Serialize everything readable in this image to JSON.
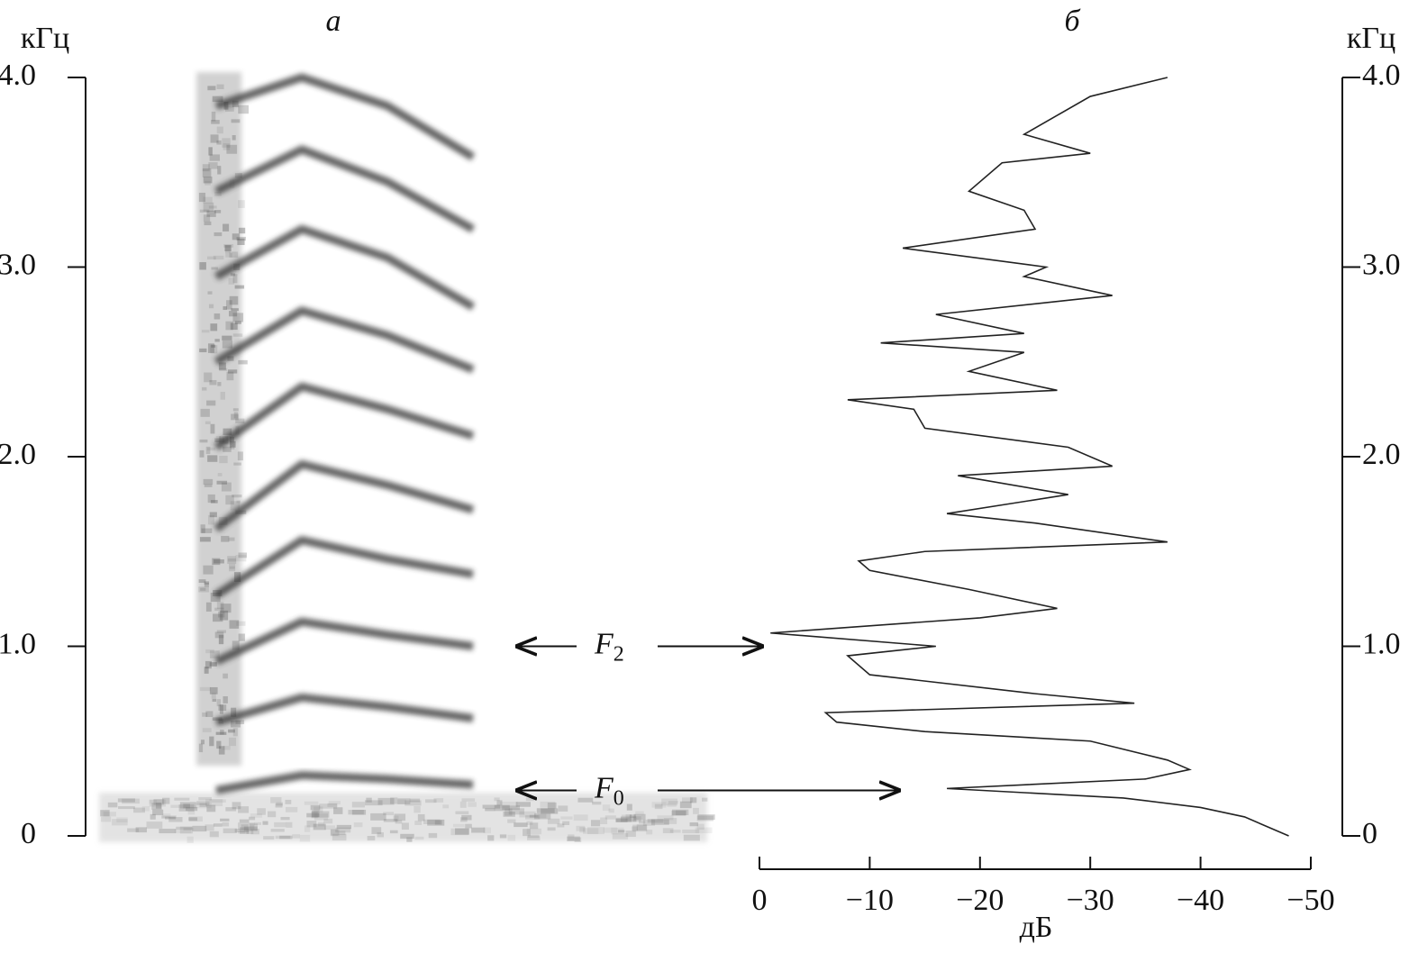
{
  "charts": [
    {
      "type": "spectrogram",
      "title": "а",
      "y_label": "кГц",
      "categories": [
        null,
        null,
        null,
        null
      ],
      "ylim": [
        0,
        4
      ],
      "yticks": [
        0,
        {
          "value": 1,
          "label": "1.0"
        },
        {
          "value": 2,
          "label": "2.0"
        },
        {
          "value": 3,
          "label": "3.0"
        },
        {
          "value": 4,
          "label": "4.0"
        }
      ],
      "color": "#333333",
      "series": [
        {
          "values": [
            0.24,
            0.32,
            0.3,
            0.27
          ]
        },
        {
          "values": [
            0.6,
            0.73,
            0.68,
            0.62
          ]
        },
        {
          "values": [
            0.92,
            1.13,
            1.06,
            1.0
          ]
        },
        {
          "values": [
            1.27,
            1.56,
            1.46,
            1.38
          ]
        },
        {
          "values": [
            1.62,
            1.96,
            1.85,
            1.72
          ]
        },
        {
          "values": [
            2.05,
            2.37,
            2.25,
            2.11
          ]
        },
        {
          "values": [
            2.5,
            2.77,
            2.64,
            2.46
          ]
        },
        {
          "values": [
            2.95,
            3.2,
            3.05,
            2.79
          ]
        },
        {
          "values": [
            3.4,
            3.62,
            3.45,
            3.2
          ]
        },
        {
          "values": [
            3.85,
            4.0,
            3.85,
            3.58
          ]
        }
      ],
      "annotations": [
        {
          "text": "F",
          "subscript": "2",
          "value": 1.0
        },
        {
          "text": "F",
          "subscript": "0",
          "value": 0.24
        }
      ]
    },
    {
      "type": "line",
      "title": "б",
      "y_label": "кГц",
      "x_label": "дБ",
      "xlim": [
        0,
        -50
      ],
      "xticks": [
        0,
        {
          "value": -10,
          "label": "−10"
        },
        {
          "value": -20,
          "label": "−20"
        },
        {
          "value": -30,
          "label": "−30"
        },
        {
          "value": -40,
          "label": "−40"
        },
        {
          "value": -50,
          "label": "−50"
        }
      ],
      "ylim": [
        0,
        4
      ],
      "yticks": [
        0,
        {
          "value": 1,
          "label": "1.0"
        },
        {
          "value": 2,
          "label": "2.0"
        },
        {
          "value": 3,
          "label": "3.0"
        },
        {
          "value": 4,
          "label": "4.0"
        }
      ],
      "color": "#222222",
      "y": [
        0,
        0.05,
        0.1,
        0.15,
        0.2,
        0.25,
        0.3,
        0.35,
        0.4,
        0.5,
        0.55,
        0.6,
        0.65,
        0.7,
        0.75,
        0.85,
        0.95,
        1.0,
        1.07,
        1.15,
        1.2,
        1.3,
        1.4,
        1.45,
        1.5,
        1.55,
        1.65,
        1.7,
        1.8,
        1.9,
        1.95,
        2.05,
        2.15,
        2.25,
        2.3,
        2.35,
        2.45,
        2.55,
        2.6,
        2.65,
        2.75,
        2.85,
        2.95,
        3.0,
        3.1,
        3.2,
        3.3,
        3.4,
        3.55,
        3.6,
        3.7,
        3.8,
        3.9,
        4.0
      ],
      "values": [
        -48,
        -46,
        -44,
        -40,
        -33,
        -17,
        -35,
        -39,
        -37,
        -30,
        -15,
        -7,
        -6,
        -34,
        -25,
        -10,
        -8,
        -16,
        -1,
        -20,
        -27,
        -19,
        -10,
        -9,
        -15,
        -37,
        -25,
        -17,
        -28,
        -18,
        -32,
        -28,
        -15,
        -14,
        -8,
        -27,
        -19,
        -24,
        -11,
        -24,
        -16,
        -32,
        -24,
        -26,
        -13,
        -25,
        -24,
        -19,
        -22,
        -30,
        -24,
        -27,
        -30,
        -37
      ]
    }
  ]
}
